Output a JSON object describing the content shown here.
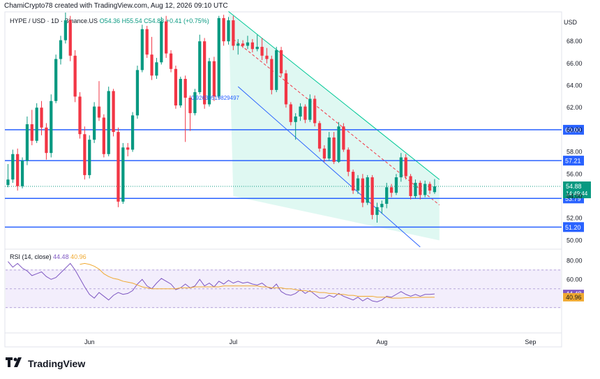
{
  "header": {
    "creator": "ChamiCrypto78 created with TradingView.com, Aug 12, 2026 09:10 UTC"
  },
  "legend": {
    "symbol": "HYPE / USD · 1D · Binance.US",
    "o": "O54.36",
    "h": "H55.54",
    "c": "C54.88",
    "chg": "+0.41 (+0.75%)"
  },
  "currency": "USD",
  "fib_label": "0.92639519829497",
  "rsi_legend": {
    "name": "RSI (14, close)",
    "rsi": "44.48",
    "ma": "40.96"
  },
  "footer": {
    "brand": "TradingView",
    "logo": "tv-logo"
  },
  "colors": {
    "up": "#089981",
    "down": "#f23645",
    "hline": "#2962ff",
    "rsi": "#7e57c2",
    "rsima": "#f0a930",
    "channel": "#00c896"
  },
  "chart_data": {
    "type": "candlestick",
    "y_ticks": [
      50,
      52,
      54,
      56,
      58,
      60,
      62,
      64,
      66,
      68
    ],
    "y_tick_labels": [
      "50.00",
      "52.00",
      "54.00",
      "56.00",
      "58.00",
      "60.00",
      "62.00",
      "64.00",
      "66.00",
      "68.00"
    ],
    "ylim": [
      49.2,
      70.6
    ],
    "x_labels": [
      "Jun",
      "Jul",
      "Aug",
      "Sep"
    ],
    "x_label_days": [
      17,
      47,
      78,
      109
    ],
    "days_total": 116,
    "ohlc": [
      [
        55.0,
        56.9,
        54.8,
        55.5
      ],
      [
        55.5,
        58.2,
        55.2,
        57.8
      ],
      [
        57.8,
        58.3,
        54.5,
        54.9
      ],
      [
        54.9,
        57.5,
        54.7,
        57.2
      ],
      [
        57.2,
        61.2,
        56.8,
        60.5
      ],
      [
        60.5,
        61.8,
        58.6,
        59.0
      ],
      [
        59.0,
        62.4,
        58.8,
        62.0
      ],
      [
        62.0,
        62.6,
        59.5,
        60.2
      ],
      [
        60.2,
        60.6,
        57.3,
        57.9
      ],
      [
        57.9,
        63.2,
        57.5,
        62.6
      ],
      [
        62.6,
        66.8,
        62.4,
        66.4
      ],
      [
        66.4,
        68.5,
        65.9,
        68.1
      ],
      [
        68.1,
        70.6,
        67.8,
        69.9
      ],
      [
        69.9,
        70.3,
        66.2,
        66.7
      ],
      [
        66.7,
        67.2,
        62.5,
        63.0
      ],
      [
        63.0,
        63.4,
        59.2,
        59.6
      ],
      [
        59.6,
        60.3,
        55.5,
        55.9
      ],
      [
        55.9,
        59.5,
        55.6,
        59.1
      ],
      [
        59.1,
        62.5,
        58.8,
        62.1
      ],
      [
        62.1,
        64.4,
        60.8,
        61.1
      ],
      [
        61.1,
        61.4,
        57.5,
        57.8
      ],
      [
        57.8,
        63.9,
        57.6,
        63.5
      ],
      [
        63.5,
        63.7,
        59.4,
        59.8
      ],
      [
        59.8,
        60.2,
        53.0,
        53.5
      ],
      [
        53.5,
        58.8,
        53.3,
        58.4
      ],
      [
        58.4,
        58.8,
        57.6,
        58.2
      ],
      [
        58.2,
        61.6,
        58.0,
        61.3
      ],
      [
        61.3,
        65.8,
        61.0,
        65.4
      ],
      [
        65.4,
        69.5,
        65.2,
        69.1
      ],
      [
        69.1,
        69.4,
        66.5,
        66.8
      ],
      [
        66.8,
        68.4,
        64.5,
        64.9
      ],
      [
        64.9,
        66.5,
        64.6,
        66.1
      ],
      [
        66.1,
        70.2,
        65.9,
        69.8
      ],
      [
        69.8,
        70.3,
        66.5,
        66.9
      ],
      [
        66.9,
        67.2,
        65.2,
        65.5
      ],
      [
        65.5,
        65.8,
        61.9,
        62.2
      ],
      [
        62.2,
        64.8,
        62.0,
        64.6
      ],
      [
        64.6,
        64.9,
        58.9,
        62.9
      ],
      [
        62.9,
        63.1,
        59.9,
        61.5
      ],
      [
        61.5,
        63.7,
        61.3,
        63.4
      ],
      [
        63.4,
        68.6,
        63.2,
        68.0
      ],
      [
        68.0,
        68.3,
        61.9,
        62.3
      ],
      [
        62.3,
        66.5,
        62.1,
        66.2
      ],
      [
        66.2,
        66.6,
        62.6,
        63.0
      ],
      [
        63.0,
        70.3,
        62.8,
        70.1
      ],
      [
        70.1,
        70.4,
        67.6,
        68.0
      ],
      [
        68.0,
        70.2,
        67.7,
        69.9
      ],
      [
        69.9,
        70.3,
        67.2,
        67.6
      ],
      [
        67.6,
        68.2,
        66.8,
        67.8
      ],
      [
        67.8,
        68.1,
        67.4,
        67.6
      ],
      [
        67.6,
        68.5,
        67.3,
        67.9
      ],
      [
        67.9,
        68.2,
        67.0,
        67.3
      ],
      [
        67.3,
        68.6,
        67.1,
        67.5
      ],
      [
        67.5,
        68.3,
        66.3,
        66.7
      ],
      [
        66.7,
        67.4,
        66.0,
        66.4
      ],
      [
        66.4,
        66.7,
        63.2,
        63.6
      ],
      [
        63.6,
        67.5,
        63.4,
        67.2
      ],
      [
        67.2,
        67.5,
        64.8,
        65.1
      ],
      [
        65.1,
        65.4,
        62.0,
        62.3
      ],
      [
        62.3,
        62.5,
        60.4,
        60.7
      ],
      [
        60.7,
        61.5,
        59.1,
        61.2
      ],
      [
        61.2,
        62.4,
        60.8,
        62.1
      ],
      [
        62.1,
        62.3,
        60.6,
        60.9
      ],
      [
        60.9,
        63.2,
        60.7,
        62.8
      ],
      [
        62.8,
        63.1,
        60.3,
        60.6
      ],
      [
        60.6,
        60.8,
        58.0,
        58.3
      ],
      [
        58.3,
        58.6,
        57.1,
        57.4
      ],
      [
        57.4,
        59.8,
        57.2,
        59.3
      ],
      [
        59.3,
        59.8,
        56.9,
        57.1
      ],
      [
        57.1,
        60.7,
        57.0,
        60.3
      ],
      [
        60.3,
        60.6,
        58.0,
        58.2
      ],
      [
        58.2,
        58.4,
        55.8,
        56.2
      ],
      [
        56.2,
        56.4,
        54.2,
        54.5
      ],
      [
        54.5,
        55.9,
        54.2,
        55.6
      ],
      [
        55.6,
        56.0,
        53.0,
        53.4
      ],
      [
        53.4,
        55.9,
        53.2,
        55.7
      ],
      [
        55.7,
        55.9,
        51.9,
        52.3
      ],
      [
        52.3,
        53.4,
        51.6,
        53.0
      ],
      [
        53.0,
        53.6,
        52.4,
        53.3
      ],
      [
        53.3,
        55.2,
        52.9,
        54.8
      ],
      [
        54.8,
        55.1,
        53.9,
        54.3
      ],
      [
        54.3,
        56.0,
        54.1,
        55.7
      ],
      [
        55.7,
        57.9,
        55.3,
        57.5
      ],
      [
        57.5,
        57.8,
        55.5,
        55.8
      ],
      [
        55.8,
        56.0,
        53.7,
        54.0
      ],
      [
        54.0,
        55.5,
        53.8,
        55.2
      ],
      [
        55.2,
        55.4,
        53.7,
        54.1
      ],
      [
        54.1,
        55.4,
        53.9,
        55.1
      ],
      [
        55.1,
        55.3,
        54.2,
        54.5
      ],
      [
        54.36,
        55.54,
        54.2,
        54.88
      ]
    ],
    "rsi": [
      79,
      73,
      77,
      72,
      69,
      64,
      66,
      68,
      63,
      60,
      62,
      67,
      72,
      77,
      70,
      61,
      52,
      44,
      40,
      46,
      42,
      38,
      43,
      46,
      44,
      45,
      48,
      55,
      60,
      53,
      50,
      56,
      61,
      58,
      55,
      49,
      51,
      55,
      51,
      53,
      60,
      53,
      56,
      52,
      58,
      55,
      59,
      56,
      58,
      56,
      57,
      55,
      54,
      56,
      52,
      50,
      55,
      47,
      44,
      43,
      45,
      49,
      45,
      48,
      44,
      40,
      40,
      43,
      41,
      45,
      42,
      40,
      38,
      41,
      37,
      40,
      37,
      36,
      38,
      42,
      41,
      44,
      47,
      44,
      42,
      44,
      42,
      44,
      44,
      44.48
    ],
    "rsi_ma": [
      76,
      77,
      76,
      74,
      71,
      66,
      63,
      61,
      60,
      58,
      57,
      56,
      54,
      52,
      51,
      50,
      50,
      50,
      50,
      50,
      50,
      51,
      51,
      51,
      52,
      52,
      52,
      52,
      52,
      52,
      53,
      53,
      53,
      53,
      53,
      53,
      53,
      53,
      52,
      52,
      51,
      51,
      51,
      50,
      50,
      49,
      48,
      48,
      47,
      47,
      46,
      46,
      45,
      45,
      44,
      44,
      43,
      43,
      42,
      42,
      42,
      42,
      41,
      41,
      41,
      40,
      40,
      40,
      40.5,
      40.6,
      40.7,
      40.8,
      40.9,
      40.96,
      40.96
    ],
    "rsi_ticks": [
      60,
      80
    ],
    "rsi_ylim": [
      20,
      84
    ],
    "hlines": [
      {
        "value": 60.0,
        "label": "60.00"
      },
      {
        "value": 57.21,
        "label": "57.21"
      },
      {
        "value": 53.79,
        "label": "53.79"
      },
      {
        "value": 51.2,
        "label": "51.20"
      }
    ],
    "last_price": {
      "value": 54.88,
      "label": "54.88",
      "countdown": "14:49:44"
    },
    "rsi_value_labels": [
      {
        "value": 44.48,
        "label": "44.48"
      },
      {
        "value": 40.96,
        "label": "40.96"
      }
    ],
    "channel": {
      "upper": [
        [
          46,
          70.7
        ],
        [
          90,
          55.5
        ]
      ],
      "mid": [
        [
          47,
          68.2
        ],
        [
          90,
          53.2
        ]
      ],
      "lower": [
        [
          48,
          63.9
        ],
        [
          86,
          49.4
        ]
      ],
      "fill_to": [
        [
          47,
          68.2
        ],
        [
          90,
          50.0
        ]
      ]
    }
  }
}
